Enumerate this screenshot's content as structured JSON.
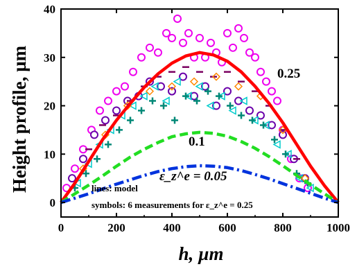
{
  "chart_data": {
    "type": "line",
    "title": "",
    "xlabel": "h, µm",
    "ylabel": "Height profile, µm",
    "xlim": [
      0,
      1000
    ],
    "ylim": [
      -3,
      40
    ],
    "x_ticks": [
      0,
      200,
      400,
      600,
      800,
      1000
    ],
    "y_ticks": [
      0,
      10,
      20,
      30,
      40
    ],
    "grid": false,
    "legend_lines": [
      "lines: model",
      "symbols: 6 measurements for ε_z^e = 0.25"
    ],
    "series": [
      {
        "name": "0.25",
        "style": "solid",
        "color": "#ff0000",
        "x": [
          0,
          50,
          100,
          150,
          200,
          250,
          300,
          350,
          400,
          450,
          500,
          550,
          600,
          650,
          700,
          750,
          800,
          850,
          900,
          950,
          1000
        ],
        "y": [
          0,
          4,
          8.5,
          13,
          17,
          20.5,
          23.8,
          26.6,
          28.8,
          30.3,
          31,
          30.5,
          29.2,
          27,
          24,
          20.5,
          16.5,
          12,
          7.5,
          3.5,
          0
        ]
      },
      {
        "name": "0.1",
        "style": "dash",
        "color": "#22dd22",
        "x": [
          0,
          50,
          100,
          150,
          200,
          250,
          300,
          350,
          400,
          450,
          500,
          550,
          600,
          650,
          700,
          750,
          800,
          850,
          900,
          950,
          1000
        ],
        "y": [
          0,
          1.8,
          3.6,
          5.5,
          7.5,
          9.4,
          11,
          12.4,
          13.6,
          14.2,
          14.5,
          14.3,
          13.7,
          12.6,
          11.2,
          9.5,
          7.6,
          5.6,
          3.7,
          1.8,
          0
        ]
      },
      {
        "name": "ε_z^e = 0.05",
        "style": "dashdot",
        "color": "#0033dd",
        "x": [
          0,
          50,
          100,
          150,
          200,
          250,
          300,
          350,
          400,
          450,
          500,
          550,
          600,
          650,
          700,
          750,
          800,
          850,
          900,
          950,
          1000
        ],
        "y": [
          0,
          0.9,
          1.8,
          2.8,
          3.8,
          4.7,
          5.6,
          6.4,
          7,
          7.4,
          7.6,
          7.5,
          7.2,
          6.6,
          5.8,
          4.9,
          3.9,
          2.9,
          1.9,
          0.9,
          0
        ]
      }
    ],
    "measurements": [
      {
        "marker": "circle-open",
        "color": "#ee00ee",
        "x": [
          20,
          50,
          80,
          110,
          140,
          170,
          200,
          230,
          260,
          290,
          320,
          350,
          380,
          400,
          420,
          440,
          460,
          480,
          500,
          520,
          540,
          560,
          580,
          600,
          620,
          640,
          660,
          680,
          700,
          720,
          740,
          760,
          780,
          800,
          830,
          860,
          890
        ],
        "y": [
          3,
          7,
          11,
          15,
          19,
          21,
          23,
          24,
          27,
          30,
          32,
          31,
          35,
          34,
          38,
          33,
          35,
          30,
          34,
          30,
          33,
          31,
          29,
          35,
          32,
          36,
          34,
          31,
          30,
          27,
          25,
          23,
          21,
          15,
          9,
          5,
          3
        ]
      },
      {
        "marker": "circle-open",
        "color": "#6a00aa",
        "x": [
          40,
          80,
          120,
          160,
          200,
          240,
          280,
          320,
          360,
          400,
          440,
          480,
          520,
          560,
          600,
          640,
          680,
          720,
          760,
          800,
          840,
          880
        ],
        "y": [
          5,
          9,
          14,
          17,
          19,
          21,
          22,
          25,
          24,
          23,
          26,
          22,
          24,
          20,
          23,
          21,
          19,
          18,
          16,
          14,
          9,
          5
        ]
      },
      {
        "marker": "triangle-open",
        "color": "#00cccc",
        "x": [
          60,
          100,
          140,
          180,
          220,
          260,
          300,
          340,
          380,
          420,
          460,
          500,
          540,
          580,
          620,
          660,
          700,
          740,
          780,
          820,
          860,
          900
        ],
        "y": [
          4,
          8,
          12,
          15,
          18,
          20,
          22,
          24,
          21,
          25,
          22,
          24,
          20,
          22,
          19,
          21,
          17,
          16,
          12,
          10,
          5,
          3
        ]
      },
      {
        "marker": "plus",
        "color": "#008877",
        "x": [
          50,
          90,
          130,
          170,
          210,
          250,
          290,
          330,
          370,
          410,
          450,
          490,
          530,
          570,
          610,
          650,
          690,
          730,
          770,
          810,
          850,
          890
        ],
        "y": [
          3,
          6,
          9,
          12,
          15,
          17,
          19,
          21,
          20,
          17,
          22,
          21,
          23,
          22,
          20,
          18,
          17,
          16,
          13,
          10,
          6,
          4
        ]
      },
      {
        "marker": "dash",
        "color": "#7a0060",
        "x": [
          100,
          150,
          200,
          250,
          300,
          350,
          400,
          450,
          500,
          550,
          600,
          650,
          700,
          750,
          800,
          850
        ],
        "y": [
          11,
          16,
          18,
          21,
          24,
          26,
          27,
          28,
          27,
          26,
          27,
          25,
          23,
          20,
          15,
          9
        ]
      },
      {
        "marker": "diamond-open",
        "color": "#ff8800",
        "x": [
          80,
          160,
          240,
          320,
          400,
          480,
          560,
          640,
          720,
          800,
          880
        ],
        "y": [
          7,
          14,
          20,
          23,
          24,
          25,
          26,
          24,
          22,
          15,
          5
        ]
      }
    ]
  }
}
